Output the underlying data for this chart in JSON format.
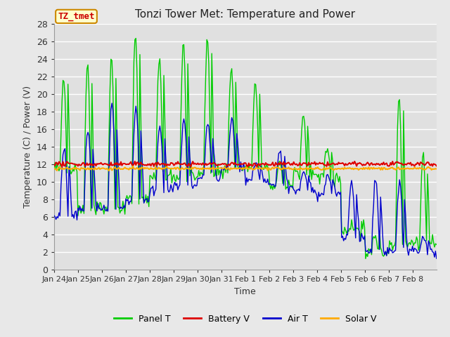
{
  "title": "Tonzi Tower Met: Temperature and Power",
  "xlabel": "Time",
  "ylabel": "Temperature (C) / Power (V)",
  "ylim": [
    0,
    28
  ],
  "yticks": [
    0,
    2,
    4,
    6,
    8,
    10,
    12,
    14,
    16,
    18,
    20,
    22,
    24,
    26,
    28
  ],
  "xtick_labels": [
    "Jan 24",
    "Jan 25",
    "Jan 26",
    "Jan 27",
    "Jan 28",
    "Jan 29",
    "Jan 30",
    "Jan 31",
    "Feb 1",
    "Feb 2",
    "Feb 3",
    "Feb 4",
    "Feb 5",
    "Feb 6",
    "Feb 7",
    "Feb 8"
  ],
  "legend_labels": [
    "Panel T",
    "Battery V",
    "Air T",
    "Solar V"
  ],
  "legend_colors": [
    "#00cc00",
    "#dd0000",
    "#0000cc",
    "#ffaa00"
  ],
  "panel_color": "#00cc00",
  "battery_color": "#dd0000",
  "air_color": "#0000cc",
  "solar_color": "#ffaa00",
  "bg_color": "#e8e8e8",
  "plot_bg_color": "#e0e0e0",
  "grid_color": "#ffffff",
  "annotation_text": "TZ_tmet",
  "annotation_bg": "#ffffcc",
  "annotation_edge": "#cc8800",
  "annotation_text_color": "#cc0000",
  "title_fontsize": 11,
  "axis_label_fontsize": 9,
  "tick_fontsize": 9,
  "legend_fontsize": 9,
  "panel_peak": [
    22,
    23.5,
    24.2,
    27,
    24,
    25.8,
    26.5,
    23,
    21,
    12.5,
    17.5,
    13.5,
    5,
    4,
    20,
    13
  ],
  "panel_trough": [
    11.5,
    7,
    7,
    8,
    10.5,
    10.5,
    11,
    11.5,
    11.5,
    9.5,
    11,
    10.5,
    4.5,
    2,
    3,
    3
  ],
  "air_peak": [
    14,
    16,
    18.7,
    18.5,
    16.5,
    17,
    16.5,
    17,
    12,
    13.5,
    11,
    11,
    10,
    10.5,
    10,
    3.5
  ],
  "air_trough": [
    6,
    7,
    7,
    8,
    9,
    9.5,
    10.5,
    11.5,
    10,
    9.5,
    9,
    8.5,
    3.5,
    2,
    2,
    2
  ],
  "battery_base": 12.0,
  "solar_base": 11.5
}
